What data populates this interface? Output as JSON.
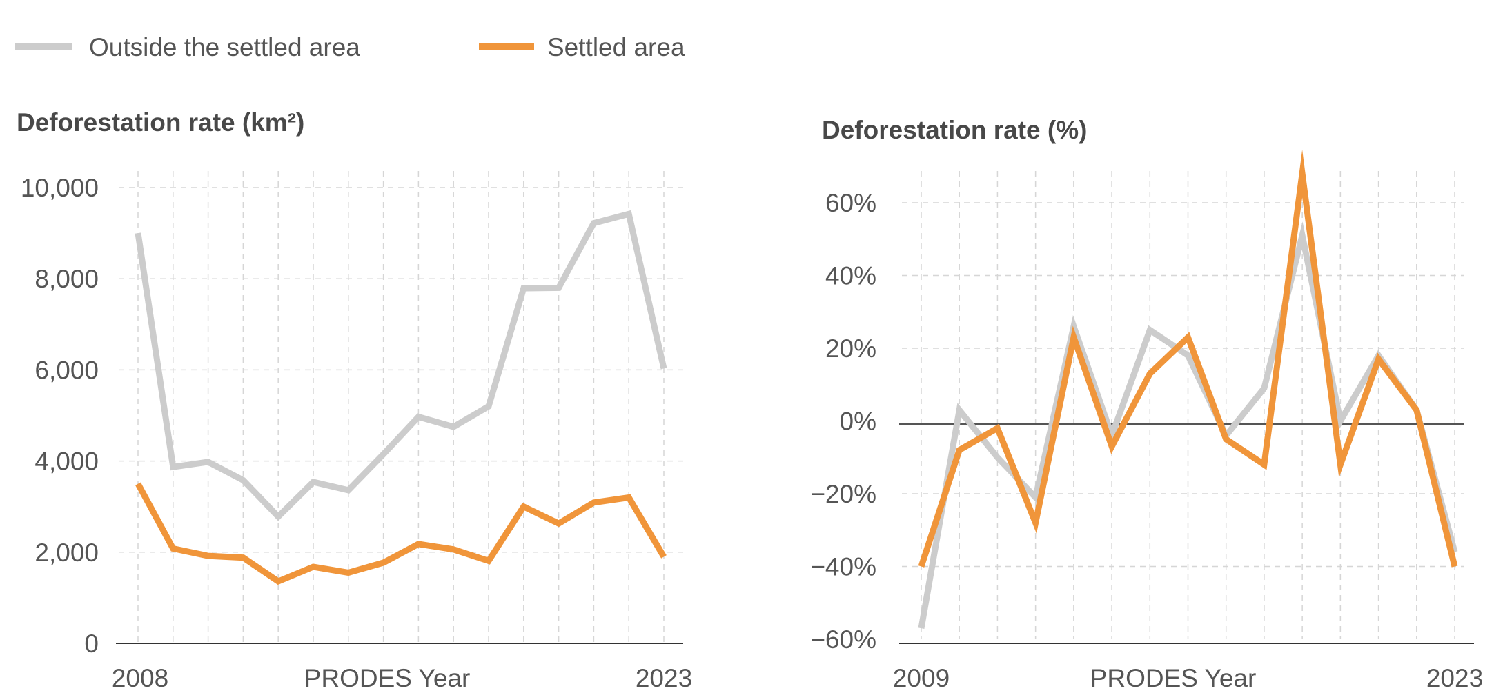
{
  "legend": [
    {
      "label": "Outside the settled area",
      "color": "#cccccc"
    },
    {
      "label": "Settled area",
      "color": "#f0953a"
    }
  ],
  "chart_data": [
    {
      "type": "line",
      "title": "Deforestation rate (km²)",
      "xlabel": "PRODES Year",
      "ylabel": "",
      "x": [
        2008,
        2009,
        2010,
        2011,
        2012,
        2013,
        2014,
        2015,
        2016,
        2017,
        2018,
        2019,
        2020,
        2021,
        2022,
        2023
      ],
      "x_tick_labels": [
        "2008",
        "2023"
      ],
      "ylim": [
        0,
        10000
      ],
      "y_ticks": [
        0,
        2000,
        4000,
        6000,
        8000,
        10000
      ],
      "y_tick_labels": [
        "0",
        "2,000",
        "4,000",
        "6,000",
        "8,000",
        "10,000"
      ],
      "grid": true,
      "series": [
        {
          "name": "Outside the settled area",
          "color": "#cccccc",
          "values": [
            9000,
            3870,
            3980,
            3580,
            2780,
            3540,
            3360,
            4150,
            4970,
            4750,
            5200,
            7790,
            7800,
            9220,
            9420,
            6030
          ]
        },
        {
          "name": "Settled area",
          "color": "#f0953a",
          "values": [
            3500,
            2080,
            1920,
            1880,
            1360,
            1680,
            1550,
            1770,
            2180,
            2060,
            1810,
            3000,
            2630,
            3090,
            3200,
            1900
          ]
        }
      ]
    },
    {
      "type": "line",
      "title": "Deforestation rate (%)",
      "xlabel": "PRODES Year",
      "ylabel": "",
      "x": [
        2009,
        2010,
        2011,
        2012,
        2013,
        2014,
        2015,
        2016,
        2017,
        2018,
        2019,
        2020,
        2021,
        2022,
        2023
      ],
      "x_tick_labels": [
        "2009",
        "2023"
      ],
      "ylim": [
        -60,
        70
      ],
      "y_ticks": [
        -60,
        -40,
        -20,
        0,
        20,
        40,
        60
      ],
      "y_tick_labels": [
        "−60%",
        "−40%",
        "−20%",
        "0%",
        "20%",
        "40%",
        "60%"
      ],
      "zero_line": true,
      "grid": true,
      "series": [
        {
          "name": "Outside the settled area",
          "color": "#cccccc",
          "values": [
            -57,
            3,
            -10,
            -21,
            26,
            -4,
            25,
            18,
            -4,
            9,
            51,
            0,
            18,
            3,
            -36
          ]
        },
        {
          "name": "Settled area",
          "color": "#f0953a",
          "values": [
            -40,
            -8,
            -2,
            -28,
            23,
            -7,
            13,
            23,
            -5,
            -12,
            68,
            -12,
            17,
            3,
            -40
          ]
        }
      ]
    }
  ]
}
